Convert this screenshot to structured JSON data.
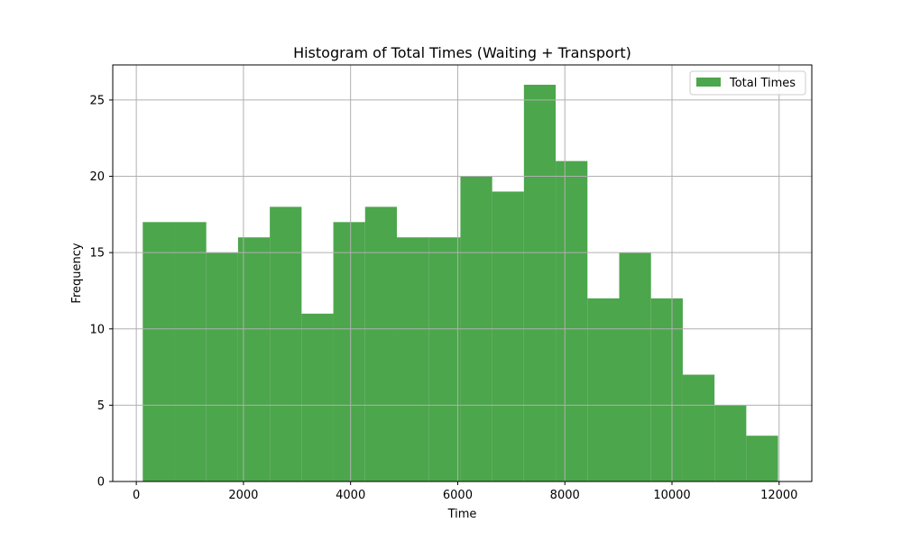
{
  "chart_data": {
    "type": "bar",
    "title": "Histogram of Total Times (Waiting + Transport)",
    "xlabel": "Time",
    "ylabel": "Frequency",
    "xlim": [
      -440,
      12610
    ],
    "ylim": [
      0,
      27.3
    ],
    "xticks": [
      0,
      2000,
      4000,
      6000,
      8000,
      10000,
      12000
    ],
    "yticks": [
      0,
      5,
      10,
      15,
      20,
      25
    ],
    "grid": true,
    "legend_position": "top-right",
    "series": [
      {
        "name": "Total Times",
        "color": "#4ca64c",
        "bins": [
          {
            "x0": 120,
            "x1": 713,
            "count": 17
          },
          {
            "x0": 713,
            "x1": 1306,
            "count": 17
          },
          {
            "x0": 1306,
            "x1": 1899,
            "count": 15
          },
          {
            "x0": 1899,
            "x1": 2492,
            "count": 16
          },
          {
            "x0": 2492,
            "x1": 3085,
            "count": 18
          },
          {
            "x0": 3085,
            "x1": 3678,
            "count": 11
          },
          {
            "x0": 3678,
            "x1": 4271,
            "count": 17
          },
          {
            "x0": 4271,
            "x1": 4864,
            "count": 18
          },
          {
            "x0": 4864,
            "x1": 5457,
            "count": 16
          },
          {
            "x0": 5457,
            "x1": 6050,
            "count": 16
          },
          {
            "x0": 6050,
            "x1": 6643,
            "count": 20
          },
          {
            "x0": 6643,
            "x1": 7236,
            "count": 19
          },
          {
            "x0": 7236,
            "x1": 7829,
            "count": 26
          },
          {
            "x0": 7829,
            "x1": 8422,
            "count": 21
          },
          {
            "x0": 8422,
            "x1": 9015,
            "count": 12
          },
          {
            "x0": 9015,
            "x1": 9608,
            "count": 15
          },
          {
            "x0": 9608,
            "x1": 10201,
            "count": 12
          },
          {
            "x0": 10201,
            "x1": 10794,
            "count": 7
          },
          {
            "x0": 10794,
            "x1": 11387,
            "count": 5
          },
          {
            "x0": 11387,
            "x1": 11980,
            "count": 3
          }
        ]
      }
    ]
  }
}
